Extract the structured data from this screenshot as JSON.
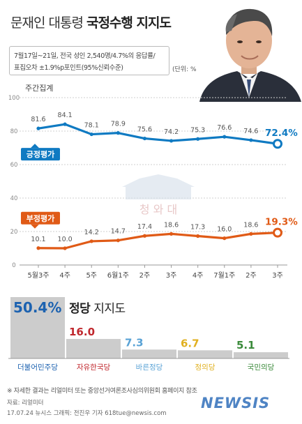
{
  "title": {
    "prefix": "문재인 대통령",
    "emphasis": "국정수행 지지도"
  },
  "survey": {
    "line1": "7월17일~21일, 전국 성인 2,540명/4.7%의 응답률/",
    "line2": "표집오차 ±1.9%p포인트(95%신뢰수준)"
  },
  "unit": "(단위: %)",
  "weekly_label": "주간집계",
  "watermark": {
    "text": "청 와 대"
  },
  "colors": {
    "positive": "#0f7ac2",
    "negative": "#e05a16",
    "bar": "#cccccc",
    "blue_label": "#1c62b0"
  },
  "chart_data": [
    {
      "type": "line",
      "categories": [
        "5월3주",
        "4주",
        "5주",
        "6월1주",
        "2주",
        "3주",
        "4주",
        "7월1주",
        "2주",
        "3주"
      ],
      "ylim": [
        0,
        100
      ],
      "yticks": [
        0,
        20,
        40,
        60,
        80,
        100
      ],
      "grid": true,
      "series": [
        {
          "name": "긍정평가",
          "values": [
            81.6,
            84.1,
            78.1,
            78.9,
            75.6,
            74.2,
            75.3,
            76.6,
            74.6,
            72.4
          ],
          "labels": [
            "81.6",
            "84.1",
            "78.1",
            "78.9",
            "75.6",
            "74.2",
            "75.3",
            "76.6",
            "74.6",
            "72.4%"
          ]
        },
        {
          "name": "부정평가",
          "values": [
            10.1,
            10.0,
            14.2,
            14.7,
            17.4,
            18.6,
            17.3,
            16.0,
            18.6,
            19.3
          ],
          "labels": [
            "10.1",
            "10.0",
            "14.2",
            "14.7",
            "17.4",
            "18.6",
            "17.3",
            "16.0",
            "18.6",
            "19.3%"
          ]
        }
      ]
    },
    {
      "type": "bar",
      "title": "정당 지지도",
      "categories": [
        "더불어민주당",
        "자유한국당",
        "바른정당",
        "정의당",
        "국민의당"
      ],
      "values": [
        50.4,
        16.0,
        7.3,
        6.7,
        5.1
      ],
      "labels": [
        "50.4%",
        "16.0",
        "7.3",
        "6.7",
        "5.1"
      ],
      "label_colors": [
        "#1c62b0",
        "#c0272d",
        "#5aa3d6",
        "#e0b020",
        "#3a8a3a"
      ]
    }
  ],
  "party_title": {
    "bold": "정당",
    "rest": "지지도"
  },
  "footer": {
    "note": "※ 자세한 결과는 리얼미터 또는 중앙선거여론조사심의위원회 홈페이지 참조",
    "source": "자료: 리얼미터",
    "credit": "17.07.24 뉴시스 그래픽: 전진우 기자 618tue@newsis.com",
    "logo": "NEWSIS"
  }
}
